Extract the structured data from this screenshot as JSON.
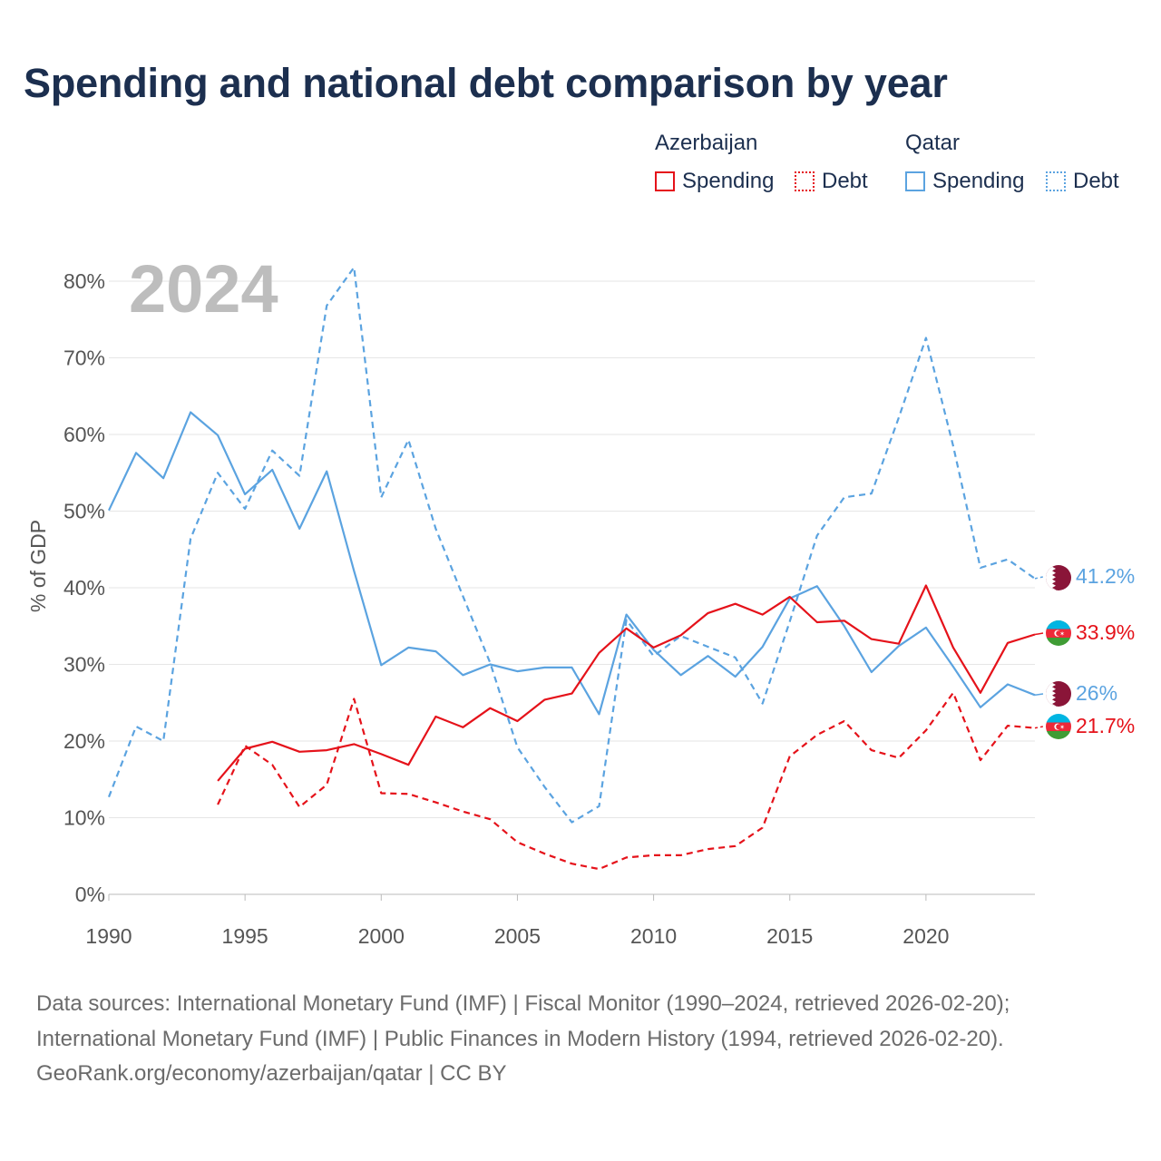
{
  "title": "Spending and national debt comparison by year",
  "legend": {
    "groups": [
      {
        "name": "Azerbaijan",
        "color": "#e5121a",
        "items": [
          {
            "label": "Spending",
            "style": "solid"
          },
          {
            "label": "Debt",
            "style": "dotted"
          }
        ]
      },
      {
        "name": "Qatar",
        "color": "#5ba3e0",
        "items": [
          {
            "label": "Spending",
            "style": "solid"
          },
          {
            "label": "Debt",
            "style": "dotted"
          }
        ]
      }
    ]
  },
  "year_label": "2024",
  "footer": {
    "line1": "Data sources: International Monetary Fund (IMF) | Fiscal Monitor (1990–2024, retrieved 2026-02-20);",
    "line2": "International Monetary Fund (IMF) | Public Finances in Modern History (1994, retrieved 2026-02-20).",
    "line3": "GeoRank.org/economy/azerbaijan/qatar | CC BY"
  },
  "chart_data": {
    "type": "line",
    "title": "Spending and national debt comparison by year",
    "xlabel": "",
    "ylabel": "% of GDP",
    "xlim": [
      1990,
      2024
    ],
    "ylim": [
      0,
      80
    ],
    "x_ticks": [
      1990,
      1995,
      2000,
      2005,
      2010,
      2015,
      2020
    ],
    "y_ticks": [
      0,
      10,
      20,
      30,
      40,
      50,
      60,
      70,
      80
    ],
    "y_tick_labels": [
      "0%",
      "10%",
      "20%",
      "30%",
      "40%",
      "50%",
      "60%",
      "70%",
      "80%"
    ],
    "grid": true,
    "series": [
      {
        "name": "Qatar Debt",
        "country": "Qatar",
        "metric": "Debt",
        "color": "#5ba3e0",
        "style": "dashed",
        "end_label": "41.2%",
        "x": [
          1990,
          1991,
          1992,
          1993,
          1994,
          1995,
          1996,
          1997,
          1998,
          1999,
          2000,
          2001,
          2002,
          2003,
          2004,
          2005,
          2006,
          2007,
          2008,
          2009,
          2010,
          2011,
          2012,
          2013,
          2014,
          2015,
          2016,
          2017,
          2018,
          2019,
          2020,
          2021,
          2022,
          2023,
          2024
        ],
        "values": [
          12.7,
          21.9,
          20.0,
          46.4,
          55.0,
          50.3,
          57.9,
          54.6,
          76.8,
          81.8,
          51.8,
          59.3,
          47.7,
          38.9,
          30.2,
          19.2,
          14.0,
          9.4,
          11.5,
          35.8,
          31.1,
          33.7,
          32.3,
          30.9,
          24.9,
          35.6,
          46.8,
          51.8,
          52.3,
          62.2,
          72.6,
          58.5,
          42.6,
          43.7,
          41.2
        ]
      },
      {
        "name": "Qatar Spending",
        "country": "Qatar",
        "metric": "Spending",
        "color": "#5ba3e0",
        "style": "solid",
        "end_label": "26%",
        "x": [
          1990,
          1991,
          1992,
          1993,
          1994,
          1995,
          1996,
          1997,
          1998,
          1999,
          2000,
          2001,
          2002,
          2003,
          2004,
          2005,
          2006,
          2007,
          2008,
          2009,
          2010,
          2011,
          2012,
          2013,
          2014,
          2015,
          2016,
          2017,
          2018,
          2019,
          2020,
          2021,
          2022,
          2023,
          2024
        ],
        "values": [
          50.1,
          57.6,
          54.3,
          62.9,
          59.9,
          52.2,
          55.4,
          47.7,
          55.2,
          42.2,
          29.9,
          32.2,
          31.7,
          28.6,
          30.0,
          29.1,
          29.6,
          29.6,
          23.5,
          36.5,
          31.9,
          28.6,
          31.1,
          28.4,
          32.3,
          38.6,
          40.2,
          35.0,
          29.0,
          32.4,
          34.8,
          29.7,
          24.4,
          27.4,
          26.0
        ]
      },
      {
        "name": "Azerbaijan Spending",
        "country": "Azerbaijan",
        "metric": "Spending",
        "color": "#e5121a",
        "style": "solid",
        "end_label": "33.9%",
        "x": [
          1994,
          1995,
          1996,
          1997,
          1998,
          1999,
          2000,
          2001,
          2002,
          2003,
          2004,
          2005,
          2006,
          2007,
          2008,
          2009,
          2010,
          2011,
          2012,
          2013,
          2014,
          2015,
          2016,
          2017,
          2018,
          2019,
          2020,
          2021,
          2022,
          2023,
          2024
        ],
        "values": [
          14.8,
          19.0,
          19.9,
          18.6,
          18.8,
          19.6,
          18.3,
          16.9,
          23.2,
          21.8,
          24.3,
          22.6,
          25.4,
          26.2,
          31.5,
          34.7,
          32.2,
          33.8,
          36.7,
          37.9,
          36.5,
          38.8,
          35.5,
          35.7,
          33.3,
          32.7,
          40.3,
          32.2,
          26.3,
          32.8,
          33.9
        ]
      },
      {
        "name": "Azerbaijan Debt",
        "country": "Azerbaijan",
        "metric": "Debt",
        "color": "#e5121a",
        "style": "dashed",
        "end_label": "21.7%",
        "x": [
          1994,
          1995,
          1996,
          1997,
          1998,
          1999,
          2000,
          2001,
          2002,
          2003,
          2004,
          2005,
          2006,
          2007,
          2008,
          2009,
          2010,
          2011,
          2012,
          2013,
          2014,
          2015,
          2016,
          2017,
          2018,
          2019,
          2020,
          2021,
          2022,
          2023,
          2024
        ],
        "values": [
          11.7,
          19.4,
          16.9,
          11.4,
          14.3,
          25.5,
          13.2,
          13.1,
          12.0,
          10.8,
          9.8,
          6.8,
          5.3,
          4.0,
          3.3,
          4.8,
          5.1,
          5.1,
          5.9,
          6.3,
          8.7,
          18.0,
          20.8,
          22.6,
          18.8,
          17.8,
          21.4,
          26.3,
          17.5,
          22.0,
          21.7
        ]
      }
    ]
  }
}
